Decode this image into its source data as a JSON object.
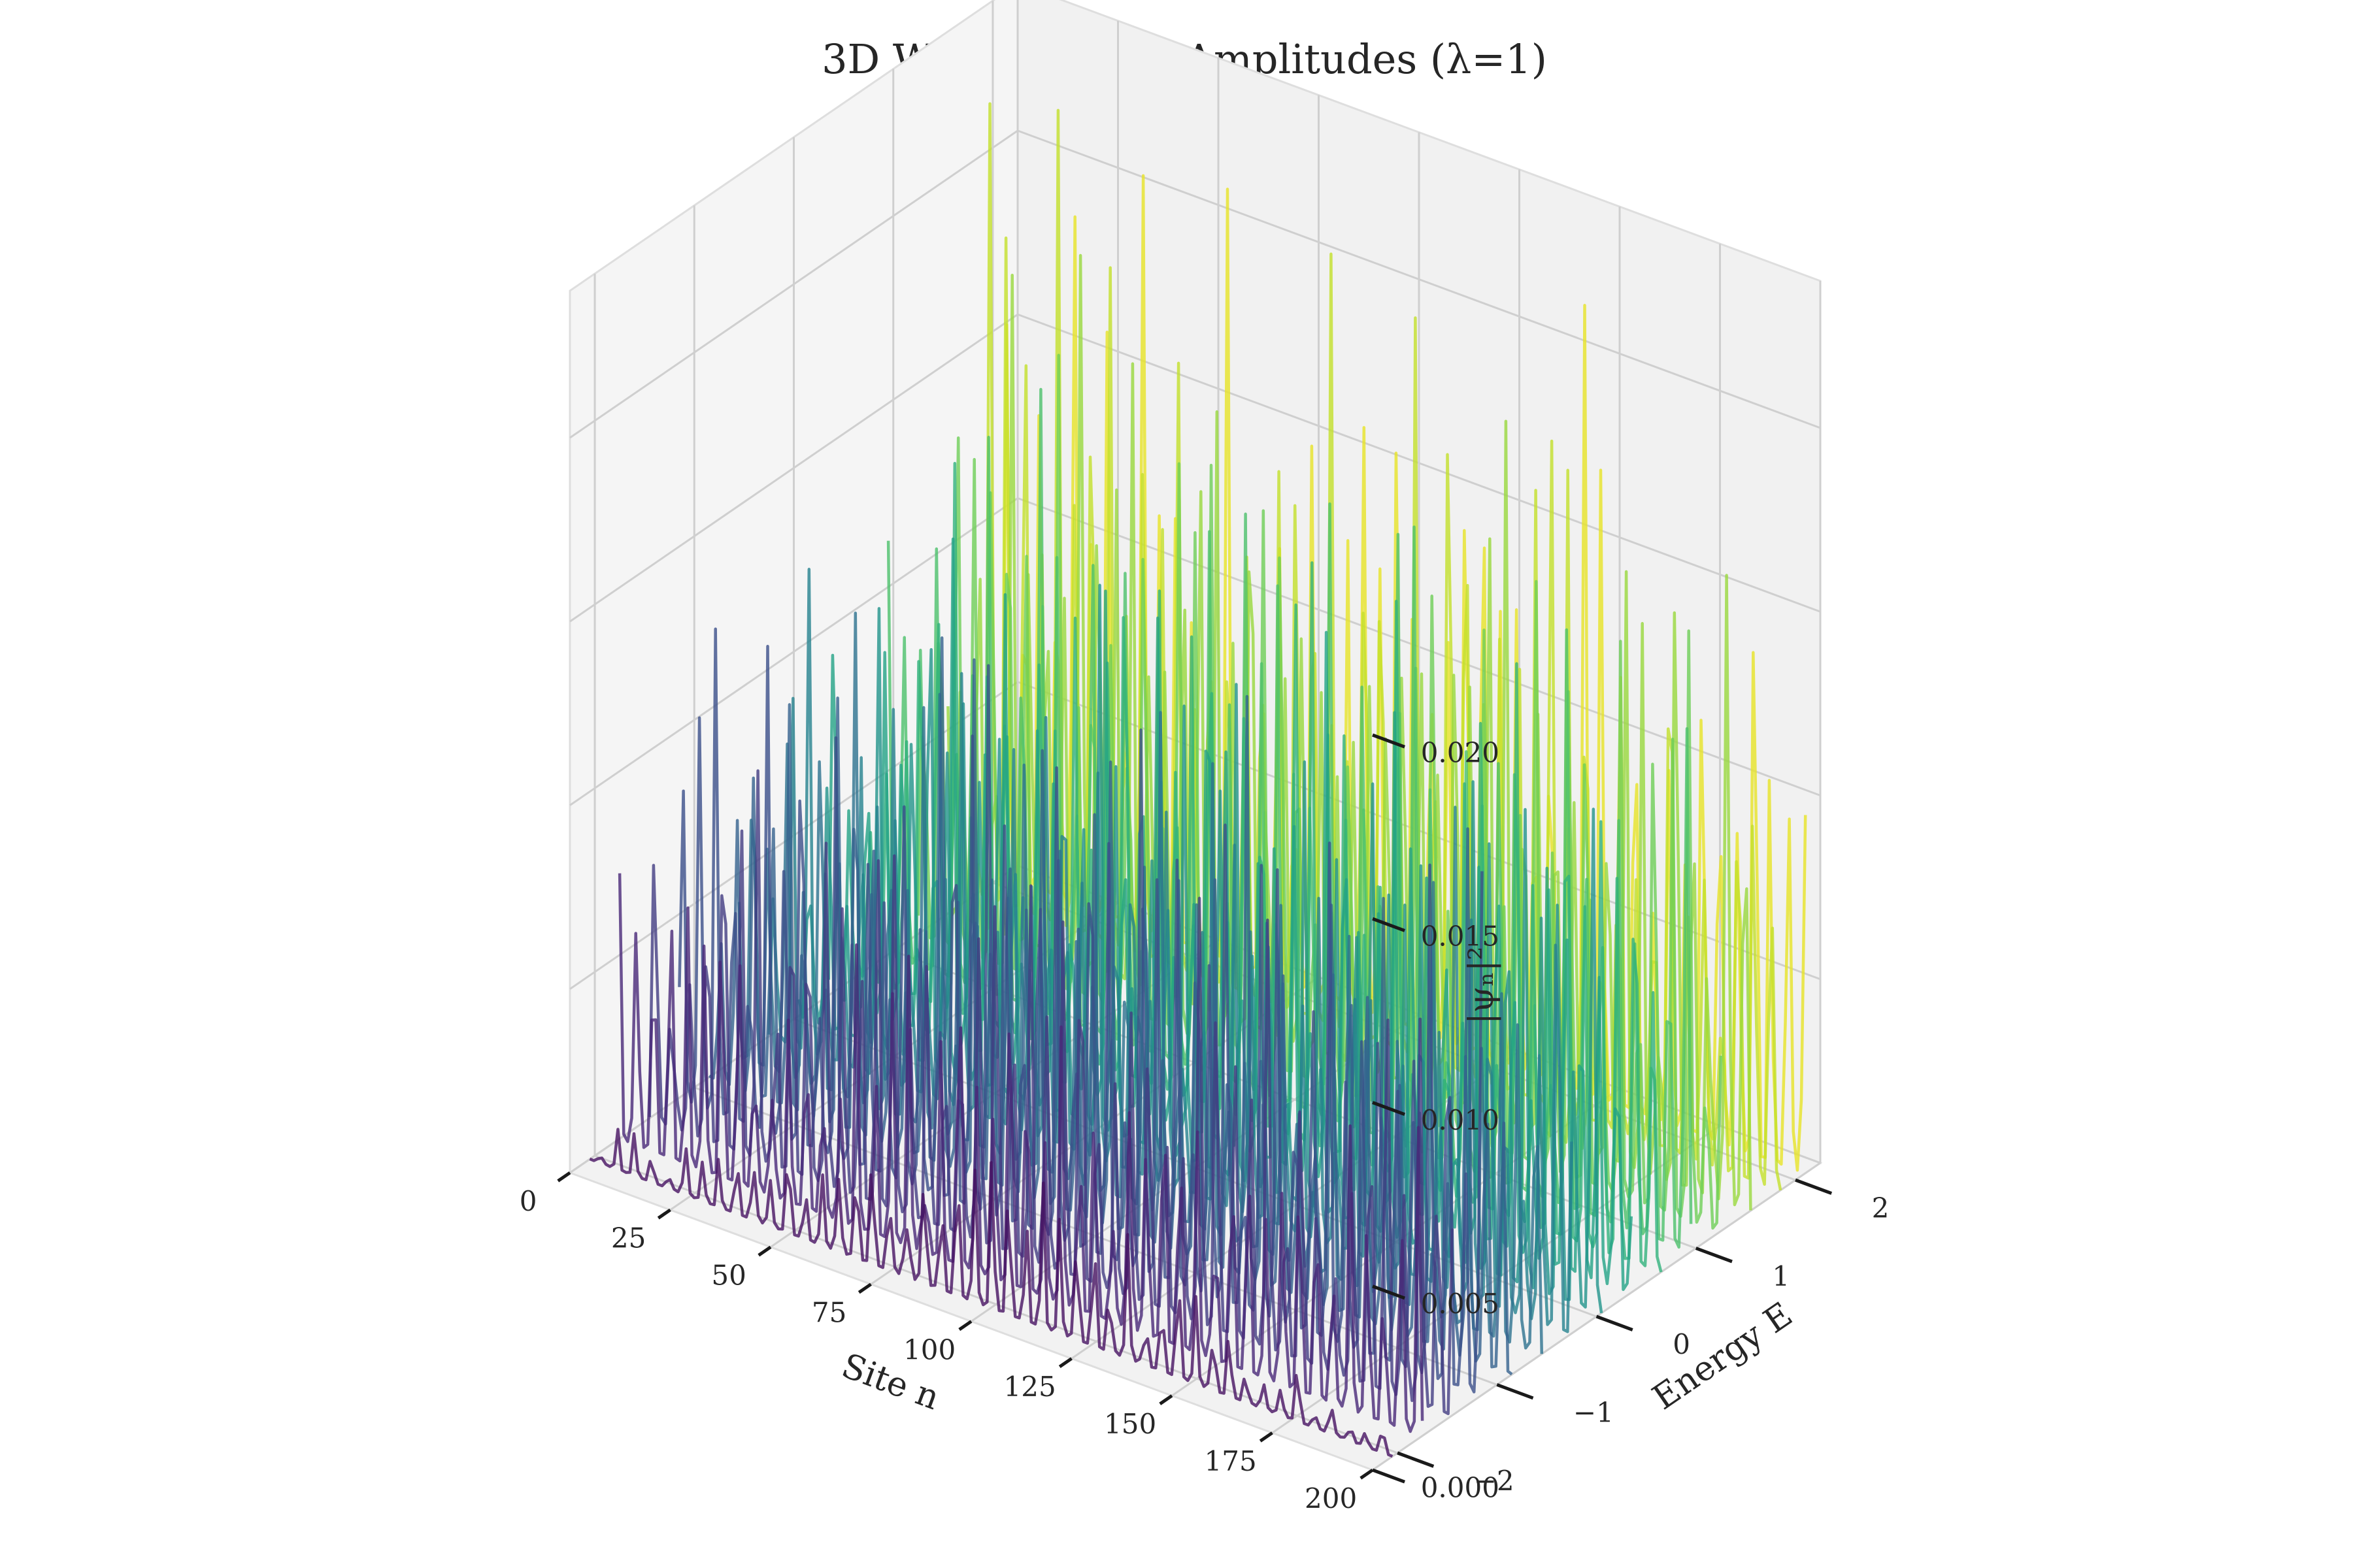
{
  "chart_data": {
    "type": "line",
    "projection": "3d",
    "title": "3D Wavefunction Amplitudes (λ=1)",
    "xlabel": "Site n",
    "ylabel": "Energy E",
    "zlabel": "|ψₙ|²",
    "xlim": [
      0,
      200
    ],
    "ylim": [
      -2.25,
      2.25
    ],
    "zlim": [
      0,
      0.024
    ],
    "x_ticks": [
      0,
      25,
      50,
      75,
      100,
      125,
      150,
      175,
      200
    ],
    "x_tick_labels": [
      "0",
      "25",
      "50",
      "75",
      "100",
      "125",
      "150",
      "175",
      "200"
    ],
    "y_ticks": [
      -2,
      -1,
      0,
      1,
      2
    ],
    "y_tick_labels": [
      "−2",
      "−1",
      "0",
      "1",
      "2"
    ],
    "z_ticks": [
      0,
      0.005,
      0.01,
      0.015,
      0.02
    ],
    "z_tick_labels": [
      "0.000",
      "0.005",
      "0.010",
      "0.015",
      "0.020"
    ],
    "grid": true,
    "legend": "none",
    "colormap": "viridis",
    "colormap_stops": [
      "#440154",
      "#482878",
      "#3e4989",
      "#31688e",
      "#26828e",
      "#1f9e89",
      "#35b779",
      "#6ece58",
      "#b5de2b",
      "#fde725"
    ],
    "series": [
      {
        "energy": -2.05,
        "peak_amplitude": 0.0045
      },
      {
        "energy": -1.75,
        "peak_amplitude": 0.0085
      },
      {
        "energy": -1.45,
        "peak_amplitude": 0.012
      },
      {
        "energy": -1.15,
        "peak_amplitude": 0.0155
      },
      {
        "energy": -0.85,
        "peak_amplitude": 0.016
      },
      {
        "energy": -0.55,
        "peak_amplitude": 0.015
      },
      {
        "energy": -0.25,
        "peak_amplitude": 0.014
      },
      {
        "energy": 0.05,
        "peak_amplitude": 0.015
      },
      {
        "energy": 0.35,
        "peak_amplitude": 0.016
      },
      {
        "energy": 0.65,
        "peak_amplitude": 0.017
      },
      {
        "energy": 0.95,
        "peak_amplitude": 0.018
      },
      {
        "energy": 1.25,
        "peak_amplitude": 0.0195
      },
      {
        "energy": 1.55,
        "peak_amplitude": 0.021
      },
      {
        "energy": 1.85,
        "peak_amplitude": 0.023
      },
      {
        "energy": 2.1,
        "peak_amplitude": 0.022
      }
    ]
  }
}
